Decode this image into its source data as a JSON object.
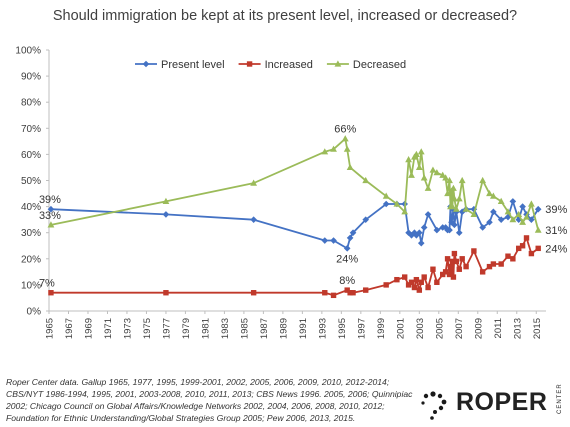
{
  "chart_data": {
    "type": "line",
    "title": "Should immigration be kept at its present level, increased or decreased?",
    "xlabel": "",
    "ylabel": "",
    "xlim": [
      1965,
      2016
    ],
    "ylim": [
      0,
      100
    ],
    "y_ticks": [
      "0%",
      "10%",
      "20%",
      "30%",
      "40%",
      "50%",
      "60%",
      "70%",
      "80%",
      "90%",
      "100%"
    ],
    "x_ticks": [
      "1965",
      "1967",
      "1969",
      "1971",
      "1973",
      "1975",
      "1977",
      "1979",
      "1981",
      "1983",
      "1985",
      "1987",
      "1989",
      "1991",
      "1993",
      "1995",
      "1997",
      "1999",
      "2001",
      "2003",
      "2005",
      "2007",
      "2009",
      "2011",
      "2013",
      "2015"
    ],
    "grid": false,
    "legend": "top-center",
    "series": [
      {
        "name": "Present level",
        "color": "#4472C4",
        "marker": "diamond",
        "points": [
          [
            1965.2,
            39
          ],
          [
            1977,
            37
          ],
          [
            1986,
            35
          ],
          [
            1993.3,
            27
          ],
          [
            1994.2,
            27
          ],
          [
            1995.6,
            24
          ],
          [
            1995.9,
            28
          ],
          [
            1996.2,
            30
          ],
          [
            1997.5,
            35
          ],
          [
            1999.6,
            41
          ],
          [
            2000.7,
            41
          ],
          [
            2001.5,
            41
          ],
          [
            2001.9,
            30
          ],
          [
            2002.2,
            29
          ],
          [
            2002.5,
            30
          ],
          [
            2002.7,
            29
          ],
          [
            2003,
            30
          ],
          [
            2003.2,
            26
          ],
          [
            2003.5,
            32
          ],
          [
            2003.9,
            37
          ],
          [
            2004.8,
            31
          ],
          [
            2005.4,
            32
          ],
          [
            2005.7,
            32
          ],
          [
            2005.9,
            31
          ],
          [
            2006.1,
            31
          ],
          [
            2006.2,
            40
          ],
          [
            2006.3,
            34
          ],
          [
            2006.4,
            36
          ],
          [
            2006.5,
            39
          ],
          [
            2006.6,
            33
          ],
          [
            2006.8,
            38
          ],
          [
            2007.1,
            30
          ],
          [
            2007.4,
            38
          ],
          [
            2007.8,
            39
          ],
          [
            2008.6,
            39
          ],
          [
            2009.5,
            32
          ],
          [
            2010.2,
            34
          ],
          [
            2010.6,
            38
          ],
          [
            2011.4,
            35
          ],
          [
            2012.1,
            36
          ],
          [
            2012.6,
            42
          ],
          [
            2013.2,
            35
          ],
          [
            2013.6,
            40
          ],
          [
            2014,
            37
          ],
          [
            2014.5,
            35
          ],
          [
            2015.2,
            39
          ]
        ]
      },
      {
        "name": "Increased",
        "color": "#C0392B",
        "marker": "square",
        "points": [
          [
            1965.2,
            7
          ],
          [
            1977,
            7
          ],
          [
            1986,
            7
          ],
          [
            1993.3,
            7
          ],
          [
            1994.2,
            6
          ],
          [
            1995.6,
            8
          ],
          [
            1995.9,
            7
          ],
          [
            1996.2,
            7
          ],
          [
            1997.5,
            8
          ],
          [
            1999.6,
            10
          ],
          [
            2000.7,
            12
          ],
          [
            2001.5,
            13
          ],
          [
            2001.9,
            10
          ],
          [
            2002.2,
            11
          ],
          [
            2002.5,
            9
          ],
          [
            2002.7,
            12
          ],
          [
            2003,
            8
          ],
          [
            2003.2,
            11
          ],
          [
            2003.5,
            13
          ],
          [
            2003.9,
            9
          ],
          [
            2004.4,
            16
          ],
          [
            2004.8,
            11
          ],
          [
            2005.4,
            14
          ],
          [
            2005.7,
            15
          ],
          [
            2005.9,
            20
          ],
          [
            2006.1,
            14
          ],
          [
            2006.2,
            17
          ],
          [
            2006.3,
            15
          ],
          [
            2006.4,
            19
          ],
          [
            2006.5,
            13
          ],
          [
            2006.6,
            22
          ],
          [
            2006.8,
            19
          ],
          [
            2007.1,
            16
          ],
          [
            2007.4,
            20
          ],
          [
            2007.8,
            17
          ],
          [
            2008.6,
            23
          ],
          [
            2009.5,
            15
          ],
          [
            2010.2,
            17
          ],
          [
            2010.6,
            18
          ],
          [
            2011.4,
            18
          ],
          [
            2012.1,
            21
          ],
          [
            2012.6,
            20
          ],
          [
            2013.2,
            24
          ],
          [
            2013.6,
            25
          ],
          [
            2014,
            28
          ],
          [
            2014.5,
            22
          ],
          [
            2015.2,
            24
          ]
        ]
      },
      {
        "name": "Decreased",
        "color": "#9BBB59",
        "marker": "triangle",
        "points": [
          [
            1965.2,
            33
          ],
          [
            1977,
            42
          ],
          [
            1986,
            49
          ],
          [
            1993.3,
            61
          ],
          [
            1994.2,
            62
          ],
          [
            1995.4,
            66
          ],
          [
            1995.6,
            62
          ],
          [
            1995.9,
            55
          ],
          [
            1997.5,
            50
          ],
          [
            1999.6,
            44
          ],
          [
            2000.7,
            41
          ],
          [
            2001.5,
            38
          ],
          [
            2001.9,
            58
          ],
          [
            2002.2,
            52
          ],
          [
            2002.5,
            59
          ],
          [
            2002.7,
            60
          ],
          [
            2003,
            55
          ],
          [
            2003.2,
            61
          ],
          [
            2003.5,
            51
          ],
          [
            2003.9,
            47
          ],
          [
            2004.4,
            54
          ],
          [
            2004.8,
            53
          ],
          [
            2005.4,
            52
          ],
          [
            2005.7,
            51
          ],
          [
            2005.9,
            45
          ],
          [
            2006.1,
            50
          ],
          [
            2006.2,
            40
          ],
          [
            2006.3,
            46
          ],
          [
            2006.4,
            40
          ],
          [
            2006.5,
            47
          ],
          [
            2006.6,
            43
          ],
          [
            2006.8,
            39
          ],
          [
            2007.1,
            43
          ],
          [
            2007.4,
            50
          ],
          [
            2007.8,
            39
          ],
          [
            2008.6,
            37
          ],
          [
            2009.5,
            50
          ],
          [
            2010.2,
            45
          ],
          [
            2010.6,
            44
          ],
          [
            2011.4,
            42
          ],
          [
            2012.1,
            38
          ],
          [
            2012.6,
            35
          ],
          [
            2013.2,
            37
          ],
          [
            2013.6,
            34
          ],
          [
            2014,
            36
          ],
          [
            2014.5,
            41
          ],
          [
            2015.2,
            31
          ]
        ]
      }
    ],
    "annotations": [
      {
        "text": "39%",
        "series": "Present level",
        "x": 1965.2,
        "y": 39,
        "anchor": "start",
        "side": "above"
      },
      {
        "text": "33%",
        "series": "Decreased",
        "x": 1965.2,
        "y": 33,
        "anchor": "start",
        "side": "above"
      },
      {
        "text": "7%",
        "series": "Increased",
        "x": 1965.2,
        "y": 7,
        "anchor": "start",
        "side": "above"
      },
      {
        "text": "66%",
        "series": "Decreased",
        "x": 1995.4,
        "y": 66,
        "anchor": "middle",
        "side": "above"
      },
      {
        "text": "24%",
        "series": "Present level",
        "x": 1995.6,
        "y": 24,
        "anchor": "middle",
        "side": "below"
      },
      {
        "text": "8%",
        "series": "Increased",
        "x": 1995.6,
        "y": 8,
        "anchor": "middle",
        "side": "above"
      },
      {
        "text": "39%",
        "series": "Present level",
        "x": 2015.2,
        "y": 39,
        "anchor": "start",
        "side": "right"
      },
      {
        "text": "31%",
        "series": "Decreased",
        "x": 2015.2,
        "y": 31,
        "anchor": "start",
        "side": "right"
      },
      {
        "text": "24%",
        "series": "Increased",
        "x": 2015.2,
        "y": 24,
        "anchor": "start",
        "side": "right"
      }
    ]
  },
  "source_lines": [
    "Roper Center data. Gallup 1965, 1977, 1995, 1999-2001, 2002, 2005, 2006, 2009, 2010, 2012-2014;",
    "CBS/NYT 1986-1994, 1995, 2001, 2003-2008, 2010, 2011, 2013; CBS News 1996. 2005, 2006; Quinnipiac",
    "2002; Chicago Council on Global Affairs/Knowledge Networks 2002, 2004, 2006, 2008, 2010, 2012;",
    "Foundation for Ethnic Understanding/Global Strategies Group 2005; Pew 2006, 2013, 2015."
  ],
  "logo": {
    "word": "ROPER",
    "vertical": "CENTER",
    "dot_color": "#1a1a1a"
  }
}
